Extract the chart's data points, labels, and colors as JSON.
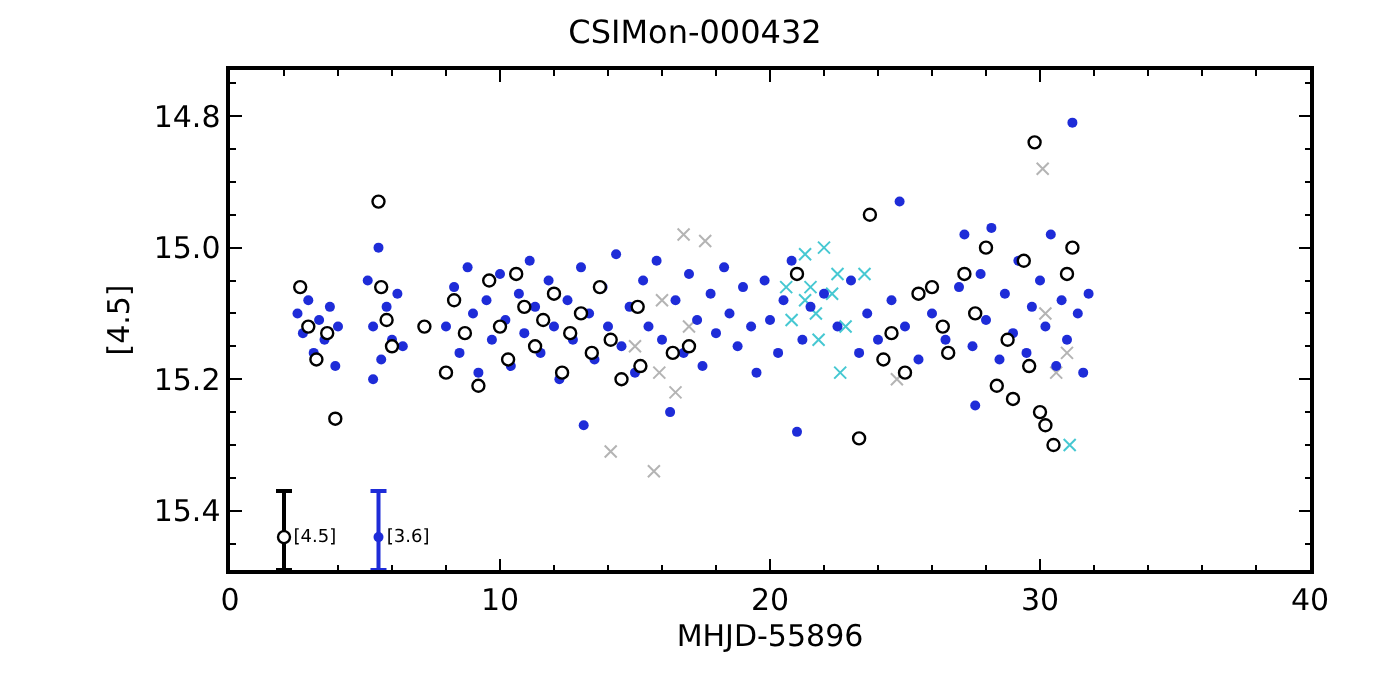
{
  "chart_data": {
    "type": "scatter",
    "title": "CSIMon-000432",
    "xlabel": "MHJD-55896",
    "ylabel": "[4.5]",
    "xlim": [
      0,
      40
    ],
    "xticks": [
      0,
      10,
      20,
      30,
      40
    ],
    "ylim": [
      15.49,
      14.73
    ],
    "yticks": [
      {
        "value": 14.8,
        "label": "14.8"
      },
      {
        "value": 15.0,
        "label": "15.0"
      },
      {
        "value": 15.2,
        "label": "15.2"
      },
      {
        "value": 15.4,
        "label": "15.4"
      }
    ],
    "grid": false,
    "legend": false,
    "series": [
      {
        "color": "#b4b4b4",
        "marker": "cross",
        "x": [
          16.8,
          17.6,
          14.1,
          15.7,
          15.9,
          16.5,
          15.0,
          17.0,
          30.1,
          30.2,
          31.0,
          30.6,
          24.7,
          16.0
        ],
        "values": [
          14.98,
          14.99,
          15.31,
          15.34,
          15.19,
          15.22,
          15.15,
          15.12,
          14.88,
          15.1,
          15.16,
          15.19,
          15.2,
          15.08
        ]
      },
      {
        "color": "#46c8d2",
        "marker": "cross",
        "x": [
          20.6,
          20.8,
          21.3,
          21.3,
          21.5,
          21.7,
          22.0,
          22.3,
          22.5,
          22.8,
          21.8,
          22.6,
          31.1,
          23.5
        ],
        "values": [
          15.06,
          15.11,
          15.01,
          15.08,
          15.06,
          15.1,
          15.0,
          15.07,
          15.04,
          15.12,
          15.14,
          15.19,
          15.3,
          15.04
        ]
      },
      {
        "color": "#1e2cd8",
        "marker": "circle",
        "x": [
          2.5,
          2.7,
          2.9,
          3.1,
          3.3,
          3.5,
          3.7,
          3.9,
          4.0,
          5.1,
          5.3,
          5.5,
          5.6,
          5.8,
          6.0,
          6.2,
          6.4,
          5.3,
          8.0,
          8.3,
          8.5,
          8.8,
          9.0,
          9.2,
          9.5,
          9.7,
          10.0,
          10.2,
          10.4,
          10.7,
          10.9,
          11.1,
          11.3,
          11.5,
          11.8,
          12.0,
          12.2,
          12.5,
          12.7,
          13.0,
          13.1,
          13.3,
          13.5,
          13.8,
          14.0,
          14.3,
          14.5,
          14.8,
          15.0,
          15.3,
          15.5,
          15.8,
          16.0,
          16.3,
          16.5,
          16.8,
          17.0,
          17.3,
          17.5,
          17.8,
          18.0,
          18.3,
          18.5,
          18.8,
          19.0,
          19.3,
          19.5,
          19.8,
          20.0,
          20.3,
          20.5,
          20.8,
          21.0,
          21.2,
          21.5,
          22.0,
          22.5,
          23.0,
          23.3,
          23.6,
          24.0,
          24.5,
          25.0,
          25.5,
          26.0,
          26.5,
          27.0,
          27.2,
          27.5,
          27.8,
          28.0,
          28.2,
          28.5,
          28.7,
          29.0,
          29.2,
          29.5,
          29.7,
          30.0,
          30.2,
          30.4,
          30.6,
          30.8,
          31.0,
          31.2,
          31.4,
          31.6,
          31.8,
          27.6,
          24.8
        ],
        "values": [
          15.1,
          15.13,
          15.08,
          15.16,
          15.11,
          15.14,
          15.09,
          15.18,
          15.12,
          15.05,
          15.12,
          15.0,
          15.17,
          15.09,
          15.14,
          15.07,
          15.15,
          15.2,
          15.12,
          15.06,
          15.16,
          15.03,
          15.1,
          15.19,
          15.08,
          15.14,
          15.04,
          15.11,
          15.18,
          15.07,
          15.13,
          15.02,
          15.09,
          15.16,
          15.05,
          15.12,
          15.2,
          15.08,
          15.14,
          15.03,
          15.27,
          15.1,
          15.17,
          15.06,
          15.12,
          15.01,
          15.15,
          15.09,
          15.19,
          15.05,
          15.12,
          15.02,
          15.14,
          15.25,
          15.08,
          15.16,
          15.04,
          15.11,
          15.18,
          15.07,
          15.13,
          15.03,
          15.1,
          15.15,
          15.06,
          15.12,
          15.19,
          15.05,
          15.11,
          15.16,
          15.08,
          15.02,
          15.28,
          15.14,
          15.09,
          15.07,
          15.12,
          15.05,
          15.16,
          15.1,
          15.14,
          15.08,
          15.12,
          15.17,
          15.1,
          15.14,
          15.06,
          14.98,
          15.15,
          15.04,
          15.11,
          14.97,
          15.17,
          15.07,
          15.13,
          15.02,
          15.16,
          15.09,
          15.05,
          15.12,
          14.98,
          15.18,
          15.08,
          15.14,
          14.81,
          15.1,
          15.19,
          15.07,
          15.24,
          14.93
        ]
      },
      {
        "color": "#000000",
        "marker": "circle",
        "x": [
          2.6,
          2.9,
          3.2,
          3.6,
          3.9,
          5.5,
          5.6,
          5.8,
          6.0,
          7.2,
          8.0,
          8.3,
          8.7,
          9.2,
          9.6,
          10.0,
          10.3,
          10.6,
          10.9,
          11.3,
          11.6,
          12.0,
          12.3,
          12.6,
          13.0,
          13.4,
          13.7,
          14.1,
          14.5,
          15.1,
          15.2,
          16.4,
          17.0,
          21.0,
          23.3,
          23.7,
          24.2,
          24.5,
          25.0,
          26.0,
          26.6,
          27.2,
          27.6,
          28.0,
          28.4,
          28.8,
          29.0,
          29.4,
          29.6,
          29.8,
          30.0,
          30.2,
          30.5,
          31.0,
          31.2,
          25.5,
          26.4
        ],
        "values": [
          15.06,
          15.12,
          15.17,
          15.13,
          15.26,
          14.93,
          15.06,
          15.11,
          15.15,
          15.12,
          15.19,
          15.08,
          15.13,
          15.21,
          15.05,
          15.12,
          15.17,
          15.04,
          15.09,
          15.15,
          15.11,
          15.07,
          15.19,
          15.13,
          15.1,
          15.16,
          15.06,
          15.14,
          15.2,
          15.09,
          15.18,
          15.16,
          15.15,
          15.04,
          15.29,
          14.95,
          15.17,
          15.13,
          15.19,
          15.06,
          15.16,
          15.04,
          15.1,
          15.0,
          15.21,
          15.14,
          15.23,
          15.02,
          15.18,
          14.84,
          15.25,
          15.27,
          15.3,
          15.04,
          15.0,
          15.07,
          15.12
        ]
      },
      {
        "name": "[4.5]",
        "color": "#000000",
        "marker": "circle",
        "x": [
          2.0
        ],
        "values": [
          15.44
        ],
        "errors": [
          [
            15.37,
            15.49
          ]
        ]
      },
      {
        "name": "[3.6]",
        "color": "#1e2cd8",
        "marker": "circle",
        "x": [
          5.5
        ],
        "values": [
          15.44
        ],
        "errors": [
          [
            15.37,
            15.49
          ]
        ]
      }
    ]
  }
}
